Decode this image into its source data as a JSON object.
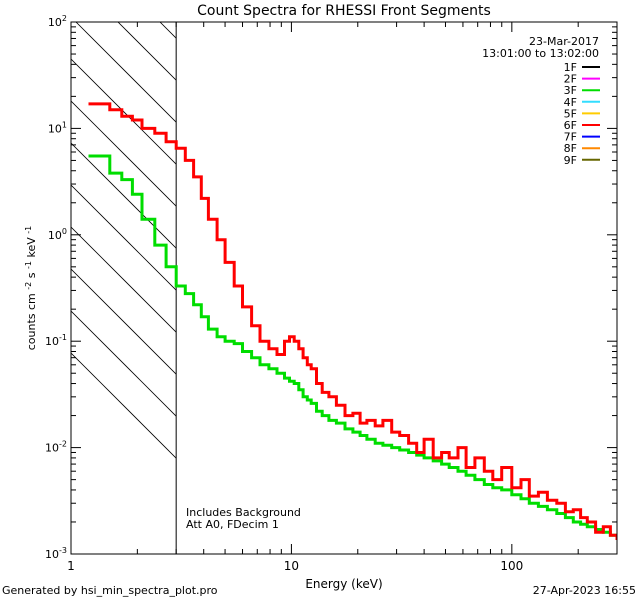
{
  "chart_data": {
    "type": "line",
    "title": "Count Spectra for RHESSI Front Segments",
    "xlabel": "Energy (keV)",
    "ylabel": {
      "base": "counts cm",
      "exp1": "-2",
      "mid1": " s",
      "exp2": "-1",
      "mid2": " keV",
      "exp3": "-1"
    },
    "xscale": "log",
    "yscale": "log",
    "xlim": [
      1,
      300
    ],
    "ylim": [
      0.001,
      100
    ],
    "x_ticks": [
      {
        "v": 1,
        "label": "1"
      },
      {
        "v": 10,
        "label": "10"
      },
      {
        "v": 100,
        "label": "100"
      }
    ],
    "y_ticks": [
      {
        "v": 0.001,
        "base": "10",
        "exp": "-3"
      },
      {
        "v": 0.01,
        "base": "10",
        "exp": "-2"
      },
      {
        "v": 0.1,
        "base": "10",
        "exp": "-1"
      },
      {
        "v": 1,
        "base": "10",
        "exp": "0"
      },
      {
        "v": 10,
        "base": "10",
        "exp": "1"
      },
      {
        "v": 100,
        "base": "10",
        "exp": "2"
      }
    ],
    "date": "23-Mar-2017",
    "time_range": "13:01:00 to 13:02:00",
    "legend": [
      {
        "label": "1F",
        "color": "#000000"
      },
      {
        "label": "2F",
        "color": "#ff00ff"
      },
      {
        "label": "3F",
        "color": "#00dd00"
      },
      {
        "label": "4F",
        "color": "#33ddff"
      },
      {
        "label": "5F",
        "color": "#ffcc00"
      },
      {
        "label": "6F",
        "color": "#ff0000"
      },
      {
        "label": "7F",
        "color": "#0000ff"
      },
      {
        "label": "8F",
        "color": "#ff8800"
      },
      {
        "label": "9F",
        "color": "#666600"
      }
    ],
    "hatched_region": {
      "xmin": 1,
      "xmax": 3
    },
    "annotations": [
      "Includes Background",
      "Att A0, FDecim 1"
    ],
    "series": [
      {
        "name": "6F",
        "color": "#ff0000",
        "x": [
          1.2,
          1.33,
          1.5,
          1.7,
          1.9,
          2.1,
          2.4,
          2.7,
          3.0,
          3.3,
          3.6,
          3.9,
          4.2,
          4.6,
          5.0,
          5.5,
          6.0,
          6.6,
          7.2,
          7.9,
          8.6,
          9.3,
          9.8,
          10.3,
          10.8,
          11.3,
          11.8,
          12.3,
          13.0,
          13.8,
          14.8,
          16.0,
          17.5,
          19.0,
          20.5,
          22.0,
          24.0,
          26.0,
          28.5,
          31.0,
          34.0,
          37.0,
          40.0,
          44.0,
          48.0,
          52.0,
          57.0,
          62.0,
          68.0,
          75.0,
          82.0,
          90.0,
          100.0,
          110.0,
          120.0,
          132.0,
          145.0,
          160.0,
          175.0,
          190.0,
          205.0,
          220.0,
          240.0,
          260.0,
          280.0,
          300.0
        ],
        "values": [
          17,
          17,
          15,
          13,
          12,
          10,
          9,
          7.5,
          6.5,
          5.0,
          3.5,
          2.2,
          1.4,
          0.9,
          0.55,
          0.33,
          0.21,
          0.14,
          0.1,
          0.085,
          0.075,
          0.1,
          0.11,
          0.1,
          0.085,
          0.07,
          0.06,
          0.055,
          0.04,
          0.033,
          0.03,
          0.025,
          0.02,
          0.021,
          0.017,
          0.018,
          0.016,
          0.018,
          0.014,
          0.013,
          0.011,
          0.009,
          0.012,
          0.008,
          0.009,
          0.008,
          0.01,
          0.0065,
          0.008,
          0.006,
          0.005,
          0.0065,
          0.0042,
          0.005,
          0.0035,
          0.0038,
          0.0032,
          0.003,
          0.0025,
          0.0026,
          0.0022,
          0.002,
          0.0016,
          0.0018,
          0.0015,
          0.0014
        ]
      },
      {
        "name": "3F",
        "color": "#00dd00",
        "x": [
          1.2,
          1.33,
          1.5,
          1.7,
          1.9,
          2.1,
          2.4,
          2.7,
          3.0,
          3.3,
          3.6,
          3.9,
          4.2,
          4.6,
          5.0,
          5.5,
          6.0,
          6.6,
          7.2,
          7.9,
          8.6,
          9.3,
          9.8,
          10.3,
          10.8,
          11.3,
          11.8,
          12.3,
          13.0,
          13.8,
          14.8,
          16.0,
          17.5,
          19.0,
          20.5,
          22.0,
          24.0,
          26.0,
          28.5,
          31.0,
          34.0,
          37.0,
          40.0,
          44.0,
          48.0,
          52.0,
          57.0,
          62.0,
          68.0,
          75.0,
          82.0,
          90.0,
          100.0,
          110.0,
          120.0,
          132.0,
          145.0,
          160.0,
          175.0,
          190.0,
          205.0,
          220.0,
          240.0,
          260.0,
          280.0,
          300.0
        ],
        "values": [
          5.5,
          5.5,
          3.8,
          3.3,
          2.4,
          1.4,
          0.8,
          0.5,
          0.33,
          0.28,
          0.22,
          0.17,
          0.13,
          0.11,
          0.1,
          0.095,
          0.08,
          0.07,
          0.06,
          0.055,
          0.05,
          0.045,
          0.042,
          0.04,
          0.035,
          0.03,
          0.028,
          0.026,
          0.022,
          0.02,
          0.018,
          0.017,
          0.015,
          0.014,
          0.013,
          0.012,
          0.011,
          0.0105,
          0.01,
          0.0095,
          0.009,
          0.0085,
          0.008,
          0.0075,
          0.007,
          0.0065,
          0.006,
          0.0055,
          0.005,
          0.0045,
          0.0042,
          0.004,
          0.0036,
          0.0033,
          0.003,
          0.0028,
          0.0026,
          0.0024,
          0.0022,
          0.002,
          0.0019,
          0.0018,
          0.0017,
          0.0016,
          0.0015,
          0.0014
        ]
      }
    ]
  },
  "footer": {
    "left": "Generated by hsi_min_spectra_plot.pro",
    "right": "27-Apr-2023 16:55"
  }
}
